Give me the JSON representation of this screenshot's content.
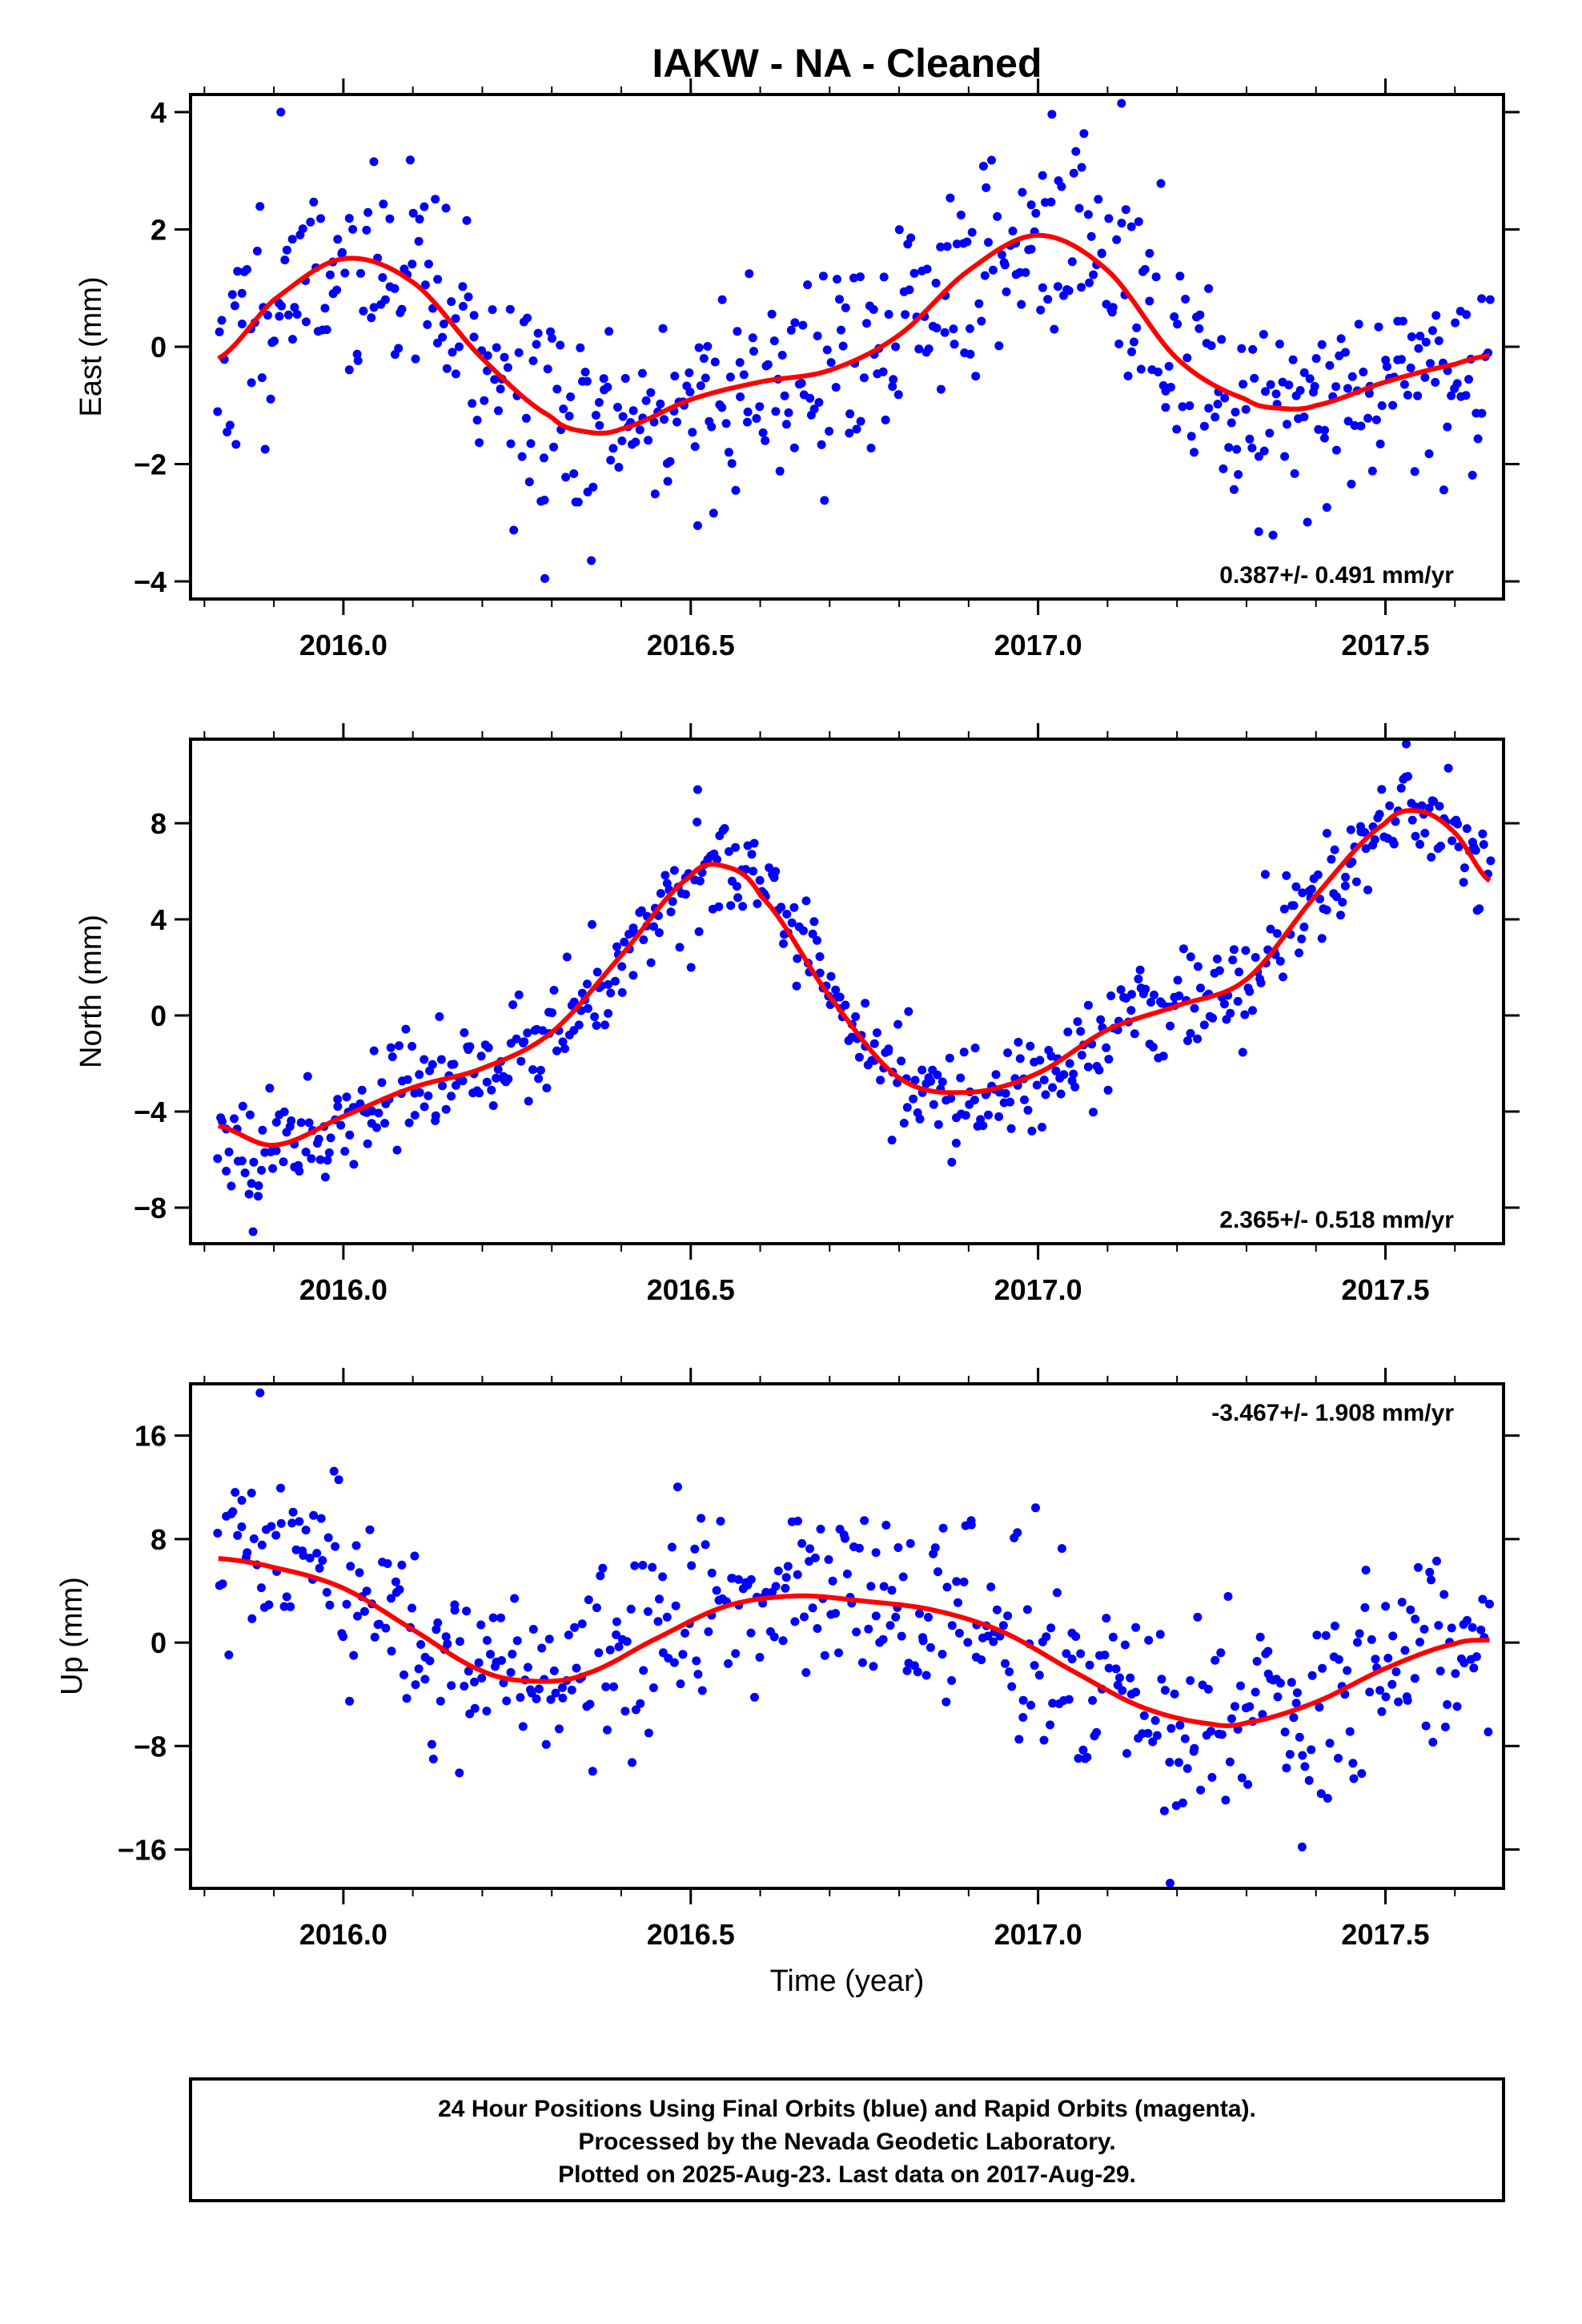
{
  "title": "IAKW  - NA - Cleaned",
  "xlabel": "Time (year)",
  "caption": [
    "24 Hour Positions Using Final Orbits (blue) and Rapid Orbits (magenta).",
    "Processed by the Nevada Geodetic Laboratory.",
    "Plotted on 2025-Aug-23. Last data on 2017-Aug-29."
  ],
  "colors": {
    "points": "#0000ff",
    "fit": "#ff0000",
    "frame": "#000000"
  },
  "chart_data": [
    {
      "type": "scatter",
      "ylabel": "East (mm)",
      "rate_text": "0.387+/- 0.491 mm/yr",
      "rate_position": "bottom-right",
      "xlim": [
        2015.78,
        2017.67
      ],
      "ylim": [
        -4.3,
        4.3
      ],
      "yticks": [
        -4,
        -2,
        0,
        2,
        4
      ],
      "ytick_labels": [
        "−4",
        "−2",
        "0",
        "2",
        "4"
      ],
      "xticks": [
        2016.0,
        2016.5,
        2017.0,
        2017.5
      ],
      "xtick_labels": [
        "2016.0",
        "2016.5",
        "2017.0",
        "2017.5"
      ],
      "fit": {
        "x": [
          2015.82,
          2015.9,
          2016.0,
          2016.1,
          2016.2,
          2016.3,
          2016.35,
          2016.4,
          2016.5,
          2016.6,
          2016.7,
          2016.8,
          2016.9,
          2017.0,
          2017.1,
          2017.2,
          2017.3,
          2017.35,
          2017.4,
          2017.5,
          2017.6,
          2017.65
        ],
        "y": [
          -0.2,
          0.8,
          1.5,
          1.1,
          -0.2,
          -1.2,
          -1.45,
          -1.4,
          -0.9,
          -0.6,
          -0.4,
          0.2,
          1.3,
          1.9,
          1.3,
          -0.2,
          -0.9,
          -1.05,
          -1.0,
          -0.6,
          -0.3,
          -0.15
        ]
      },
      "scatter": {
        "n": 560,
        "noise": 0.95,
        "seed": 11,
        "outliers": [
          [
            2015.91,
            4.0
          ],
          [
            2016.29,
            -3.95
          ],
          [
            2017.12,
            4.15
          ],
          [
            2016.51,
            -3.05
          ]
        ]
      }
    },
    {
      "type": "scatter",
      "ylabel": "North (mm)",
      "rate_text": "2.365+/- 0.518 mm/yr",
      "rate_position": "bottom-right",
      "xlim": [
        2015.78,
        2017.67
      ],
      "ylim": [
        -9.5,
        11.5
      ],
      "yticks": [
        -8,
        -4,
        0,
        4,
        8
      ],
      "ytick_labels": [
        "−8",
        "−4",
        "0",
        "4",
        "8"
      ],
      "xticks": [
        2016.0,
        2016.5,
        2017.0,
        2017.5
      ],
      "xtick_labels": [
        "2016.0",
        "2016.5",
        "2017.0",
        "2017.5"
      ],
      "fit": {
        "x": [
          2015.82,
          2015.9,
          2016.0,
          2016.1,
          2016.2,
          2016.3,
          2016.4,
          2016.5,
          2016.55,
          2016.6,
          2016.7,
          2016.8,
          2016.9,
          2017.0,
          2017.1,
          2017.2,
          2017.3,
          2017.4,
          2017.5,
          2017.55,
          2017.6,
          2017.65
        ],
        "y": [
          -4.6,
          -5.4,
          -4.2,
          -3.0,
          -2.2,
          -0.7,
          2.5,
          5.8,
          6.2,
          5.0,
          0.8,
          -2.6,
          -3.2,
          -2.4,
          -0.6,
          0.4,
          1.5,
          5.0,
          8.0,
          8.5,
          7.6,
          5.6
        ]
      },
      "scatter": {
        "n": 560,
        "noise": 1.05,
        "seed": 23,
        "outliers": [
          [
            2015.87,
            -9.0
          ],
          [
            2017.53,
            11.3
          ],
          [
            2016.51,
            9.4
          ]
        ]
      }
    },
    {
      "type": "scatter",
      "ylabel": "Up (mm)",
      "rate_text": "-3.467+/- 1.908 mm/yr",
      "rate_position": "top-right",
      "xlim": [
        2015.78,
        2017.67
      ],
      "ylim": [
        -19,
        20
      ],
      "yticks": [
        -16,
        -8,
        0,
        8,
        16
      ],
      "ytick_labels": [
        "−16",
        "−8",
        "0",
        "8",
        "16"
      ],
      "xticks": [
        2016.0,
        2016.5,
        2017.0,
        2017.5
      ],
      "xtick_labels": [
        "2016.0",
        "2016.5",
        "2017.0",
        "2017.5"
      ],
      "fit": {
        "x": [
          2015.82,
          2015.9,
          2016.0,
          2016.1,
          2016.2,
          2016.28,
          2016.35,
          2016.45,
          2016.55,
          2016.65,
          2016.75,
          2016.85,
          2016.95,
          2017.05,
          2017.15,
          2017.25,
          2017.3,
          2017.4,
          2017.5,
          2017.6,
          2017.65
        ],
        "y": [
          6.5,
          5.8,
          4.2,
          1.0,
          -2.2,
          -3.0,
          -2.4,
          0.3,
          2.8,
          3.6,
          3.2,
          2.5,
          0.8,
          -2.2,
          -5.0,
          -6.3,
          -6.2,
          -4.6,
          -2.0,
          -0.1,
          0.2
        ]
      },
      "scatter": {
        "n": 520,
        "noise": 3.6,
        "seed": 37,
        "outliers": [
          [
            2015.88,
            19.3
          ],
          [
            2017.19,
            -18.6
          ],
          [
            2017.38,
            -15.8
          ]
        ]
      }
    }
  ]
}
